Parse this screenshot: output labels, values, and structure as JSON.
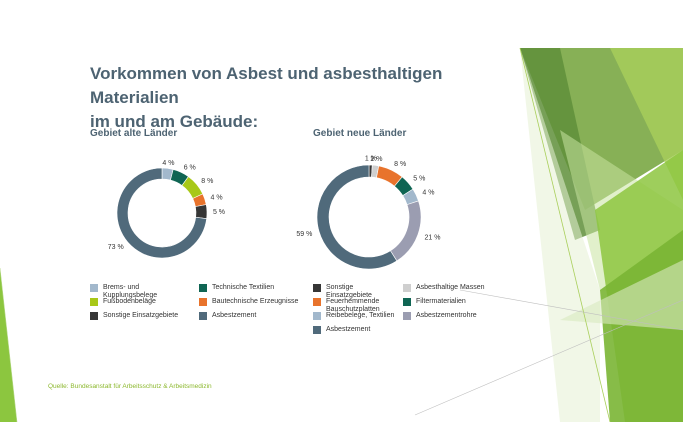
{
  "title_line1": "Vorkommen von Asbest und asbesthaltigen Materialien",
  "title_line2": "im und am Gebäude:",
  "source": "Quelle: Bundesanstalt für Arbeitsschutz & Arbeitsmedizin",
  "chart_data": [
    {
      "type": "pie",
      "title": "Gebiet alte Länder",
      "slices": [
        {
          "name": "Brems- und Kupplungsbelege",
          "value": 4,
          "label": "4 %",
          "color": "#a2b8cc"
        },
        {
          "name": "Technische Textilien",
          "value": 6,
          "label": "6 %",
          "color": "#0f6553"
        },
        {
          "name": "Fußbodenbeläge",
          "value": 8,
          "label": "8 %",
          "color": "#a8c818"
        },
        {
          "name": "Bautechnische Erzeugnisse",
          "value": 4,
          "label": "4 %",
          "color": "#e8732c"
        },
        {
          "name": "Sonstige Einsatzgebiete",
          "value": 5,
          "label": "5 %",
          "color": "#363636"
        },
        {
          "name": "Asbestzement",
          "value": 73,
          "label": "73 %",
          "color": "#506a7b"
        }
      ],
      "legend": [
        [
          "Brems- und Kupplungsbelege",
          "Technische Textilien"
        ],
        [
          "Fußbodenbeläge",
          "Bautechnische Erzeugnisse"
        ],
        [
          "Sonstige Einsatzgebiete",
          "Asbestzement"
        ]
      ]
    },
    {
      "type": "pie",
      "title": "Gebiet neue Länder",
      "slices": [
        {
          "name": "Sonstige Einsatzgebiete",
          "value": 1,
          "label": "1 %",
          "color": "#363636"
        },
        {
          "name": "Asbesthaltige Massen",
          "value": 2,
          "label": "2 %",
          "color": "#cfcfcf"
        },
        {
          "name": "Feuerhemmende Bauschutzplatten",
          "value": 8,
          "label": "8 %",
          "color": "#e8732c"
        },
        {
          "name": "Filtermaterialien",
          "value": 5,
          "label": "5 %",
          "color": "#0f6553"
        },
        {
          "name": "Reibebelege, Textilien",
          "value": 4,
          "label": "4 %",
          "color": "#a2b8cc"
        },
        {
          "name": "Asbestzementrohre",
          "value": 21,
          "label": "21 %",
          "color": "#9b9db1"
        },
        {
          "name": "Asbestzement",
          "value": 59,
          "label": "59 %",
          "color": "#506a7b"
        }
      ],
      "legend": [
        [
          "Sonstige Einsatzgebiete",
          "Asbesthaltige Massen"
        ],
        [
          "Feuerhemmende Bauschutzplatten",
          "Filtermaterialien"
        ],
        [
          "Reibebelege, Textilien",
          "Asbestzementrohre"
        ],
        [
          "Asbestzement"
        ]
      ]
    }
  ]
}
